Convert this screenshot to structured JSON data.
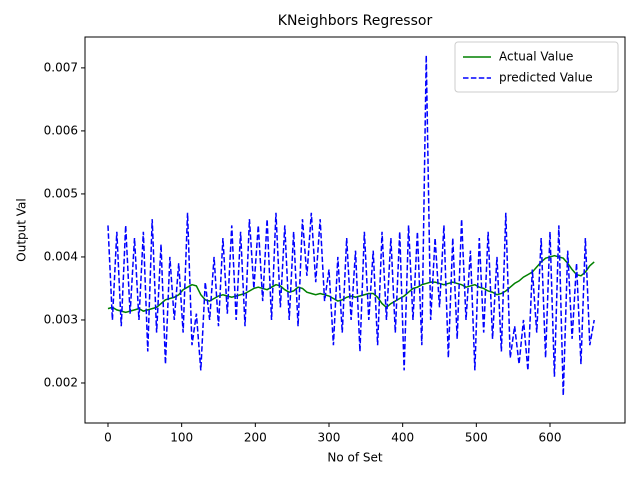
{
  "chart_data": {
    "type": "line",
    "title": "KNeighbors Regressor",
    "xlabel": "No of Set",
    "ylabel": "Output Val",
    "x": [
      0,
      6,
      12,
      18,
      24,
      30,
      36,
      42,
      48,
      54,
      60,
      66,
      72,
      78,
      84,
      90,
      96,
      102,
      108,
      114,
      120,
      126,
      132,
      138,
      144,
      150,
      156,
      162,
      168,
      174,
      180,
      186,
      192,
      198,
      204,
      210,
      216,
      222,
      228,
      234,
      240,
      246,
      252,
      258,
      264,
      270,
      276,
      282,
      288,
      294,
      300,
      306,
      312,
      318,
      324,
      330,
      336,
      342,
      348,
      354,
      360,
      366,
      372,
      378,
      384,
      390,
      396,
      402,
      408,
      414,
      420,
      426,
      432,
      438,
      444,
      450,
      456,
      462,
      468,
      474,
      480,
      486,
      492,
      498,
      504,
      510,
      516,
      522,
      528,
      534,
      540,
      546,
      552,
      558,
      564,
      570,
      576,
      582,
      588,
      594,
      600,
      606,
      612,
      618,
      624,
      630,
      636,
      642,
      648,
      654,
      660
    ],
    "series": [
      {
        "name": "Actual Value",
        "color": "#008000",
        "linestyle": "solid",
        "values": [
          0.00318,
          0.0032,
          0.00316,
          0.00314,
          0.00312,
          0.00314,
          0.00316,
          0.00318,
          0.00314,
          0.00316,
          0.00318,
          0.0032,
          0.00326,
          0.00332,
          0.00334,
          0.00336,
          0.0034,
          0.00348,
          0.00352,
          0.00356,
          0.00354,
          0.0034,
          0.00332,
          0.0033,
          0.00334,
          0.00338,
          0.0034,
          0.00338,
          0.00336,
          0.00338,
          0.0034,
          0.00342,
          0.00346,
          0.0035,
          0.00352,
          0.0035,
          0.00348,
          0.00352,
          0.00356,
          0.00354,
          0.00348,
          0.00344,
          0.00346,
          0.00352,
          0.0035,
          0.00344,
          0.00342,
          0.0034,
          0.00342,
          0.0034,
          0.00338,
          0.00334,
          0.0033,
          0.00332,
          0.00336,
          0.00338,
          0.00336,
          0.00338,
          0.0034,
          0.00342,
          0.00342,
          0.00336,
          0.00326,
          0.0032,
          0.00326,
          0.0033,
          0.00334,
          0.00338,
          0.00344,
          0.0035,
          0.00352,
          0.00356,
          0.00358,
          0.0036,
          0.0036,
          0.00358,
          0.00356,
          0.00358,
          0.0036,
          0.00358,
          0.00356,
          0.00352,
          0.00354,
          0.00356,
          0.00352,
          0.0035,
          0.00346,
          0.00344,
          0.0034,
          0.00342,
          0.00346,
          0.00352,
          0.00358,
          0.00362,
          0.00368,
          0.00372,
          0.00376,
          0.00384,
          0.00392,
          0.00398,
          0.004,
          0.00402,
          0.004,
          0.00398,
          0.0039,
          0.0038,
          0.00372,
          0.0037,
          0.00376,
          0.00386,
          0.00392
        ]
      },
      {
        "name": "predicted Value",
        "color": "#0000ff",
        "linestyle": "dashed",
        "values": [
          0.0045,
          0.003,
          0.0044,
          0.0029,
          0.0045,
          0.0031,
          0.0043,
          0.003,
          0.0044,
          0.0025,
          0.0046,
          0.0028,
          0.0042,
          0.0023,
          0.004,
          0.003,
          0.0039,
          0.0028,
          0.0047,
          0.0026,
          0.0031,
          0.0022,
          0.0036,
          0.003,
          0.004,
          0.0029,
          0.0043,
          0.0031,
          0.0045,
          0.003,
          0.0044,
          0.0029,
          0.0046,
          0.0035,
          0.0045,
          0.0033,
          0.0046,
          0.003,
          0.0047,
          0.0032,
          0.0045,
          0.003,
          0.0044,
          0.0029,
          0.0046,
          0.0037,
          0.0047,
          0.0036,
          0.0046,
          0.0033,
          0.0038,
          0.0026,
          0.004,
          0.0028,
          0.0043,
          0.003,
          0.0041,
          0.0025,
          0.0044,
          0.003,
          0.0041,
          0.0026,
          0.0044,
          0.003,
          0.0043,
          0.0028,
          0.0044,
          0.0022,
          0.0045,
          0.003,
          0.0044,
          0.0026,
          0.0072,
          0.003,
          0.0043,
          0.0032,
          0.0045,
          0.0024,
          0.0043,
          0.0027,
          0.0046,
          0.003,
          0.0041,
          0.0022,
          0.0043,
          0.0028,
          0.0044,
          0.0027,
          0.004,
          0.0025,
          0.0047,
          0.0024,
          0.0029,
          0.0023,
          0.003,
          0.0022,
          0.0038,
          0.0028,
          0.0043,
          0.0024,
          0.0044,
          0.0021,
          0.0045,
          0.0018,
          0.0041,
          0.0027,
          0.0039,
          0.0023,
          0.0043,
          0.0026,
          0.003
        ]
      }
    ],
    "xlim": [
      -31.2,
      701.8
    ],
    "ylim": [
      0.001365,
      0.00749
    ],
    "xticks": [
      0,
      100,
      200,
      300,
      400,
      500,
      600
    ],
    "yticks": [
      0.002,
      0.003,
      0.004,
      0.005,
      0.006,
      0.007
    ],
    "legend": "upper right"
  }
}
